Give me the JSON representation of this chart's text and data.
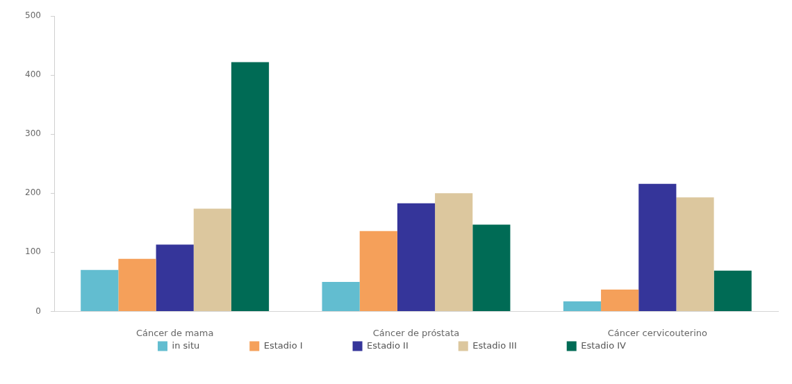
{
  "chart_data": {
    "type": "bar",
    "categories": [
      "Cáncer de mama",
      "Cáncer de próstata",
      "Cáncer cervicouterino"
    ],
    "series": [
      {
        "name": "in situ",
        "color": "#62bdd0",
        "values": [
          70,
          50,
          17
        ]
      },
      {
        "name": "Estadio I",
        "color": "#f5a05a",
        "values": [
          89,
          136,
          37
        ]
      },
      {
        "name": "Estadio II",
        "color": "#35359a",
        "values": [
          113,
          183,
          216
        ]
      },
      {
        "name": "Estadio III",
        "color": "#dcc79e",
        "values": [
          174,
          200,
          193
        ]
      },
      {
        "name": "Estadio IV",
        "color": "#006b55",
        "values": [
          422,
          147,
          69
        ]
      }
    ],
    "ylim": [
      0,
      500
    ],
    "yticks": [
      0,
      100,
      200,
      300,
      400,
      500
    ],
    "legend": "bottom"
  }
}
